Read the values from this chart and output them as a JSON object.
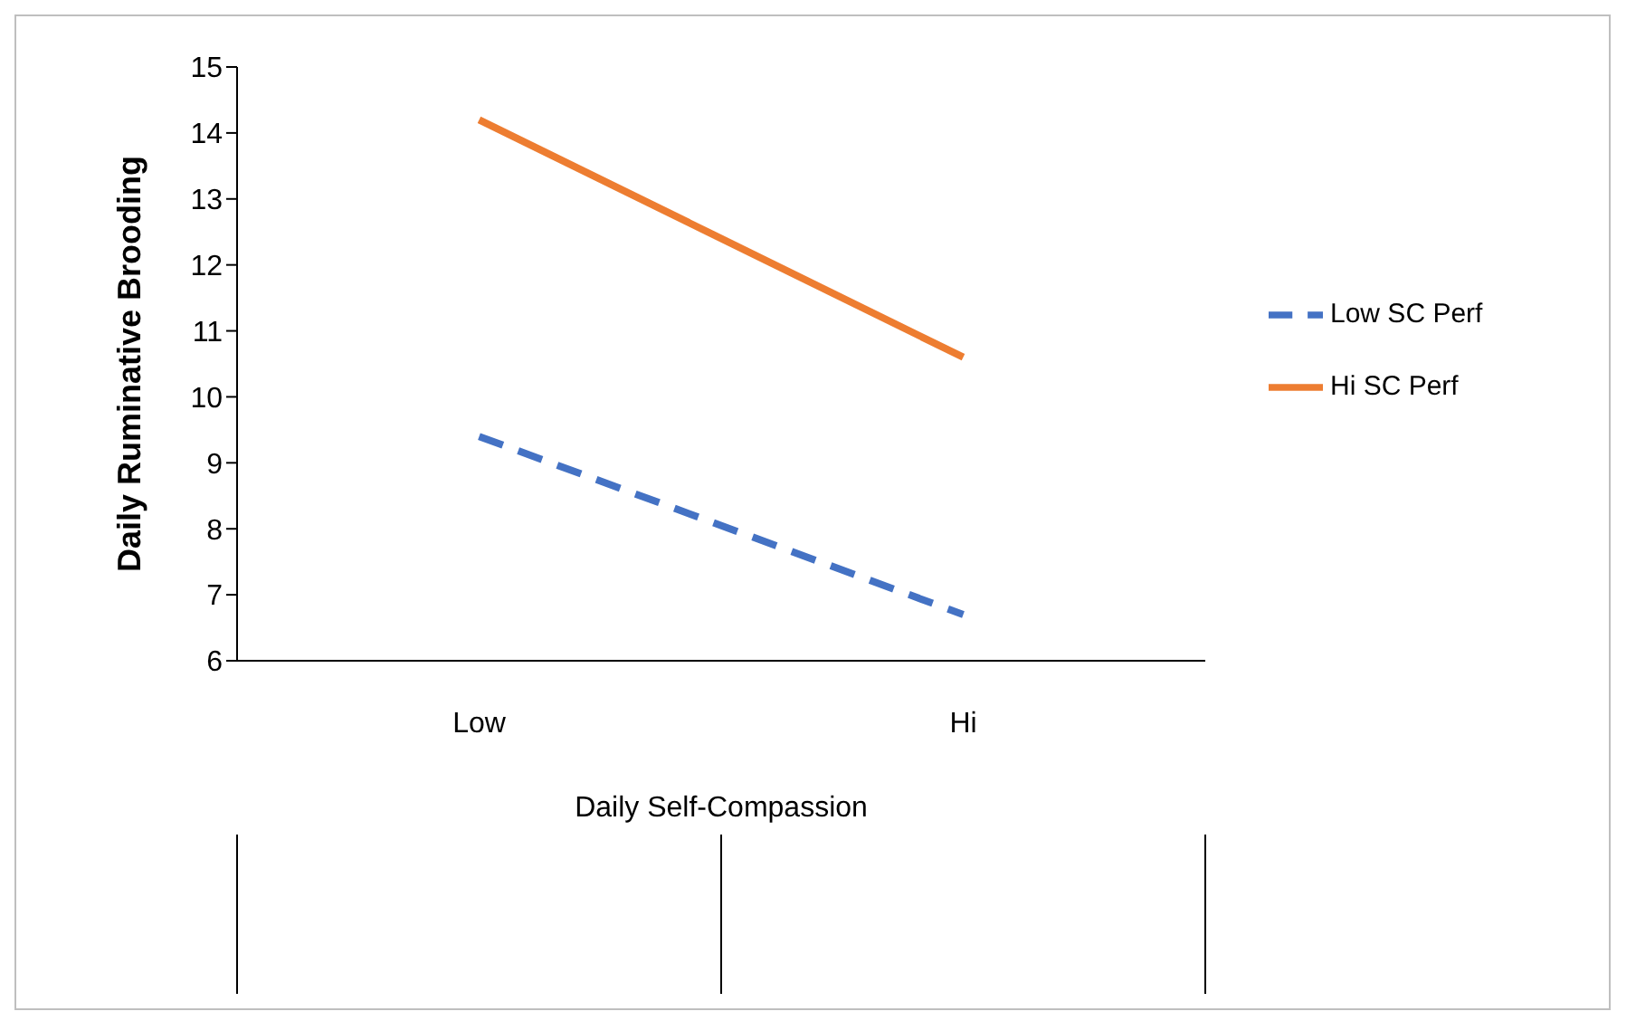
{
  "chart_data": {
    "type": "line",
    "xlabel": "Daily Self-Compassion",
    "ylabel": "Daily Ruminative Brooding",
    "categories": [
      "Low",
      "Hi"
    ],
    "series": [
      {
        "name": "Low SC Perf",
        "color": "#4472c4",
        "values": [
          9.4,
          6.7
        ],
        "line_style": "dashed"
      },
      {
        "name": "Hi SC Perf",
        "color": "#ed7d31",
        "values": [
          14.2,
          10.6
        ],
        "line_style": "solid"
      }
    ],
    "ylim": [
      6,
      15
    ],
    "yticks": [
      6,
      7,
      8,
      9,
      10,
      11,
      12,
      13,
      14,
      15
    ],
    "grid": false,
    "legend": "right",
    "marker": "none"
  }
}
